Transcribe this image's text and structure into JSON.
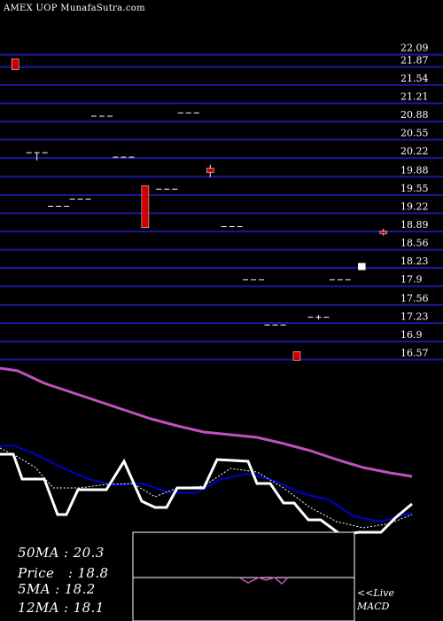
{
  "chart_data": {
    "type": "candlestick",
    "title": "AMEX  UOP MunafaSutra.com",
    "price_ticks": [
      "22.09",
      "21.87",
      "21.54",
      "21.21",
      "20.88",
      "20.55",
      "20.22",
      "19.88",
      "19.55",
      "19.22",
      "18.89",
      "18.56",
      "18.23",
      "17.9",
      "17.56",
      "17.23",
      "16.9",
      "16.57"
    ],
    "ylim": [
      16.4,
      22.1
    ],
    "candles": [
      {
        "open": 21.92,
        "close": 21.72,
        "high": 21.92,
        "low": 21.72,
        "color": "red"
      },
      {
        "open": 20.22,
        "close": 20.08,
        "high": 20.22,
        "low": 20.08,
        "color": "flat"
      },
      {
        "open": 19.25,
        "close": 19.25,
        "high": 19.25,
        "low": 19.25,
        "color": "flat"
      },
      {
        "open": 19.38,
        "close": 19.38,
        "high": 19.38,
        "low": 19.38,
        "color": "flat"
      },
      {
        "open": 20.88,
        "close": 20.88,
        "high": 20.88,
        "low": 20.88,
        "color": "flat"
      },
      {
        "open": 20.14,
        "close": 20.14,
        "high": 20.14,
        "low": 20.14,
        "color": "flat"
      },
      {
        "open": 19.62,
        "close": 18.86,
        "high": 19.62,
        "low": 18.86,
        "color": "red"
      },
      {
        "open": 19.56,
        "close": 19.56,
        "high": 19.56,
        "low": 19.56,
        "color": "flat"
      },
      {
        "open": 20.94,
        "close": 20.94,
        "high": 20.94,
        "low": 20.94,
        "color": "flat"
      },
      {
        "open": 19.94,
        "close": 19.86,
        "high": 20.0,
        "low": 19.78,
        "color": "red"
      },
      {
        "open": 18.88,
        "close": 18.88,
        "high": 18.88,
        "low": 18.88,
        "color": "flat"
      },
      {
        "open": 17.92,
        "close": 17.92,
        "high": 17.92,
        "low": 17.92,
        "color": "flat"
      },
      {
        "open": 17.1,
        "close": 17.1,
        "high": 17.1,
        "low": 17.1,
        "color": "flat"
      },
      {
        "open": 16.62,
        "close": 16.46,
        "high": 16.62,
        "low": 16.46,
        "color": "red"
      },
      {
        "open": 17.24,
        "close": 17.22,
        "high": 17.28,
        "low": 17.2,
        "color": "red"
      },
      {
        "open": 17.92,
        "close": 17.92,
        "high": 17.92,
        "low": 17.92,
        "color": "flat"
      },
      {
        "open": 18.1,
        "close": 18.22,
        "high": 18.22,
        "low": 18.1,
        "color": "white"
      },
      {
        "open": 18.8,
        "close": 18.76,
        "high": 18.84,
        "low": 18.72,
        "color": "red"
      }
    ],
    "moving_average_50": [
      20.3,
      20.3
    ],
    "info": {
      "ma50_label": "50MA : 20.3",
      "price_label": "Price   : 18.8",
      "ma5_label": "5MA : 18.2",
      "ma12_label": "12MA : 18.1"
    },
    "macd_label_1": "<<Live",
    "macd_label_2": "MACD",
    "colors": {
      "grid": "#1a1aa0",
      "red_candle": "#cc0000",
      "ma_long": "#c050c0",
      "ma_short": "#0000cc",
      "price_line": "#ffffff",
      "dotted": "#ffffff"
    }
  }
}
